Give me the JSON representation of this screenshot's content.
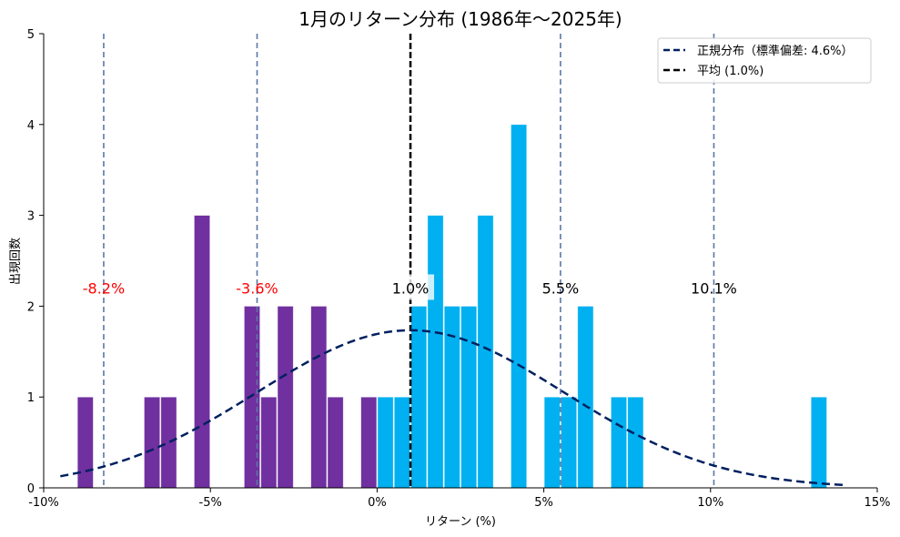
{
  "chart_data": {
    "type": "bar",
    "title": "1月のリターン分布 (1986年～2025年)",
    "xlabel": "リターン (%)",
    "ylabel": "出現回数",
    "xlim": [
      -10,
      15
    ],
    "ylim": [
      0,
      5
    ],
    "xticks": [
      {
        "value": -10,
        "label": "-10%",
        "color": "#ff0000"
      },
      {
        "value": -5,
        "label": "-5%",
        "color": "#ff0000"
      },
      {
        "value": 0,
        "label": "0%",
        "color": "#000000"
      },
      {
        "value": 5,
        "label": "5%",
        "color": "#000000"
      },
      {
        "value": 10,
        "label": "10%",
        "color": "#000000"
      },
      {
        "value": 15,
        "label": "15%",
        "color": "#000000"
      }
    ],
    "yticks": [
      0,
      1,
      2,
      3,
      4,
      5
    ],
    "grid": false,
    "bin_width": 0.5,
    "bins": [
      {
        "start": -9.0,
        "count": 1
      },
      {
        "start": -7.0,
        "count": 1
      },
      {
        "start": -6.5,
        "count": 1
      },
      {
        "start": -5.5,
        "count": 3
      },
      {
        "start": -4.0,
        "count": 2
      },
      {
        "start": -3.5,
        "count": 1
      },
      {
        "start": -3.0,
        "count": 2
      },
      {
        "start": -2.0,
        "count": 2
      },
      {
        "start": -1.5,
        "count": 1
      },
      {
        "start": -0.5,
        "count": 1
      },
      {
        "start": 0.0,
        "count": 1
      },
      {
        "start": 0.5,
        "count": 1
      },
      {
        "start": 1.0,
        "count": 2
      },
      {
        "start": 1.5,
        "count": 3
      },
      {
        "start": 2.0,
        "count": 2
      },
      {
        "start": 2.5,
        "count": 2
      },
      {
        "start": 3.0,
        "count": 3
      },
      {
        "start": 4.0,
        "count": 4
      },
      {
        "start": 5.0,
        "count": 1
      },
      {
        "start": 5.5,
        "count": 1
      },
      {
        "start": 6.0,
        "count": 2
      },
      {
        "start": 7.0,
        "count": 1
      },
      {
        "start": 7.5,
        "count": 1
      },
      {
        "start": 13.0,
        "count": 1
      }
    ],
    "colors": {
      "negative": "#7030a0",
      "positive": "#00b0f0",
      "normal_curve": "#002060",
      "sigma_lines": "#5b77a8",
      "mean_line": "#000000",
      "negative_label": "#ff0000",
      "positive_label": "#000000"
    },
    "normal_curve": {
      "mean": 1.0,
      "std": 4.6,
      "n": 40,
      "x_range": [
        -9.5,
        14.0
      ]
    },
    "mean_line": {
      "value": 1.0
    },
    "sigma_lines": [
      {
        "value": -8.2,
        "label": "-8.2%"
      },
      {
        "value": -3.6,
        "label": "-3.6%"
      },
      {
        "value": 5.5,
        "label": "5.5%"
      },
      {
        "value": 10.1,
        "label": "10.1%"
      }
    ],
    "annotations": [
      {
        "x": -8.2,
        "y": 2.2,
        "text": "-8.2%"
      },
      {
        "x": -3.6,
        "y": 2.2,
        "text": "-3.6%"
      },
      {
        "x": 1.0,
        "y": 2.2,
        "text": "1.0%"
      },
      {
        "x": 5.5,
        "y": 2.2,
        "text": "5.5%"
      },
      {
        "x": 10.1,
        "y": 2.2,
        "text": "10.1%"
      }
    ],
    "legend": {
      "placement": "top-right",
      "entries": [
        {
          "label": "正規分布（標準偏差: 4.6%）",
          "style": "dashed",
          "color": "#002060"
        },
        {
          "label": "平均 (1.0%)",
          "style": "dashed",
          "color": "#000000"
        }
      ]
    }
  }
}
